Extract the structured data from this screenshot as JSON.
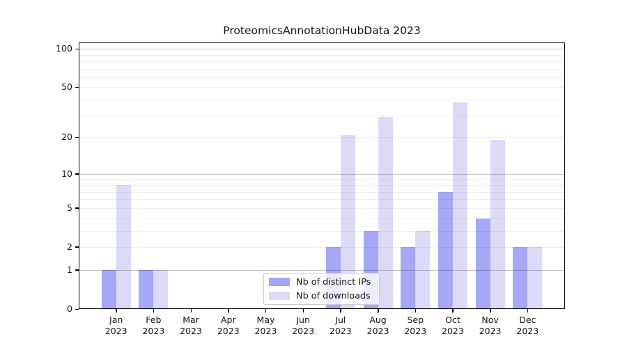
{
  "chart_data": {
    "type": "bar",
    "title": "ProteomicsAnnotationHubData 2023",
    "categories": [
      "Jan",
      "Feb",
      "Mar",
      "Apr",
      "May",
      "Jun",
      "Jul",
      "Aug",
      "Sep",
      "Oct",
      "Nov",
      "Dec"
    ],
    "year": "2023",
    "series": [
      {
        "name": "Nb of distinct IPs",
        "color": "#a7a7f7",
        "values": [
          1,
          1,
          0,
          0,
          0,
          0,
          2,
          3,
          2,
          7,
          4,
          2
        ]
      },
      {
        "name": "Nb of downloads",
        "color": "#dbdbf7",
        "values": [
          8,
          1,
          0,
          0,
          0,
          0,
          21,
          29,
          3,
          38,
          19,
          2
        ]
      }
    ],
    "yscale": "log1p",
    "ylim": [
      0,
      112
    ],
    "yticks": [
      0,
      1,
      2,
      5,
      10,
      20,
      50,
      100
    ],
    "major_gridlines": [
      1,
      10,
      100
    ],
    "minor_gridlines": [
      2,
      3,
      4,
      5,
      6,
      7,
      8,
      9,
      20,
      30,
      40,
      50,
      60,
      70,
      80,
      90
    ],
    "grid": "on",
    "legend_position": "lower-center",
    "xlabel": "",
    "ylabel": ""
  }
}
